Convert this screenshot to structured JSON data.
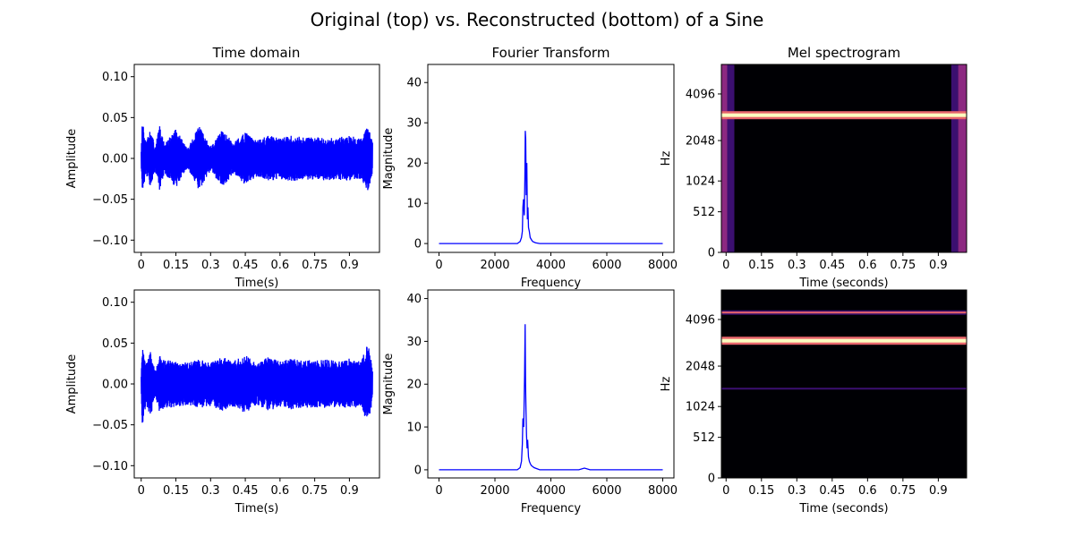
{
  "figure": {
    "title": "Original (top) vs. Reconstructed (bottom) of a Sine",
    "column_titles": [
      "Time domain",
      "Fourier Transform",
      "Mel spectrogram"
    ]
  },
  "colors": {
    "signal": "#0000ff",
    "spec_background": "#000004",
    "spec_band_core": "#fcfdbf",
    "spec_band_edge": "#e8656c",
    "spec_edge_purple": "#3b0f70",
    "spec_edge_magenta": "#8c2981"
  },
  "chart_data": [
    {
      "id": "time-original",
      "type": "line",
      "xlabel": "Time(s)",
      "ylabel": "Amplitude",
      "xlim": [
        -0.03,
        1.03
      ],
      "ylim": [
        -0.115,
        0.115
      ],
      "xticks": [
        0,
        0.15,
        0.3,
        0.45,
        0.6,
        0.75,
        0.9
      ],
      "xtick_labels": [
        "0",
        "0.15",
        "0.3",
        "0.45",
        "0.6",
        "0.75",
        "0.9"
      ],
      "yticks": [
        -0.1,
        -0.05,
        0,
        0.05,
        0.1
      ],
      "ytick_labels": [
        "−0.10",
        "−0.05",
        "0.00",
        "0.05",
        "0.10"
      ],
      "envelope": {
        "t": [
          0.0,
          0.005,
          0.02,
          0.04,
          0.06,
          0.08,
          0.1,
          0.15,
          0.2,
          0.25,
          0.3,
          0.35,
          0.4,
          0.45,
          0.5,
          0.55,
          0.6,
          0.65,
          0.7,
          0.75,
          0.8,
          0.85,
          0.9,
          0.95,
          0.98,
          1.0
        ],
        "amp": [
          0.012,
          0.047,
          0.02,
          0.035,
          0.015,
          0.04,
          0.018,
          0.036,
          0.012,
          0.04,
          0.015,
          0.035,
          0.02,
          0.032,
          0.022,
          0.028,
          0.025,
          0.028,
          0.026,
          0.026,
          0.027,
          0.026,
          0.028,
          0.025,
          0.04,
          0.02
        ]
      }
    },
    {
      "id": "fft-original",
      "type": "line",
      "xlabel": "Frequency",
      "ylabel": "Magnitude",
      "xlim": [
        -400,
        8400
      ],
      "ylim": [
        -2.2,
        44.5
      ],
      "xticks": [
        0,
        2000,
        4000,
        6000,
        8000
      ],
      "xtick_labels": [
        "0",
        "2000",
        "4000",
        "6000",
        "8000"
      ],
      "yticks": [
        0,
        10,
        20,
        30,
        40
      ],
      "ytick_labels": [
        "0",
        "10",
        "20",
        "30",
        "40"
      ],
      "x": [
        0,
        2800,
        2900,
        2950,
        2980,
        3000,
        3020,
        3050,
        3070,
        3085,
        3100,
        3120,
        3140,
        3160,
        3180,
        3200,
        3230,
        3260,
        3300,
        3350,
        3450,
        3600,
        4000,
        8000
      ],
      "y": [
        0,
        0,
        0.5,
        1.5,
        3,
        9,
        11,
        7,
        16,
        28,
        26,
        12,
        20,
        6,
        9,
        4,
        3,
        1.5,
        1,
        0.5,
        0.2,
        0,
        0,
        0
      ]
    },
    {
      "id": "mel-original",
      "type": "heatmap",
      "xlabel": "Time (seconds)",
      "ylabel": "Hz",
      "xticks": [
        0,
        0.15,
        0.3,
        0.45,
        0.6,
        0.75,
        0.9
      ],
      "xtick_labels": [
        "0",
        "0.15",
        "0.3",
        "0.45",
        "0.6",
        "0.75",
        "0.9"
      ],
      "ytick_labels": [
        "0",
        "512",
        "1024",
        "2048",
        "4096"
      ],
      "time_range": [
        -0.02,
        1.02
      ],
      "mel_range": [
        0,
        1.0
      ],
      "ytick_mel": [
        0,
        0.216,
        0.38,
        0.595,
        0.843
      ],
      "bands": [
        {
          "mel": 0.73,
          "strength": 1.0
        }
      ],
      "edge_frames": {
        "left": [
          -0.02,
          0.035
        ],
        "right": [
          0.955,
          1.02
        ]
      }
    },
    {
      "id": "time-reconstructed",
      "type": "line",
      "xlabel": "Time(s)",
      "ylabel": "Amplitude",
      "xlim": [
        -0.03,
        1.03
      ],
      "ylim": [
        -0.115,
        0.115
      ],
      "xticks": [
        0,
        0.15,
        0.3,
        0.45,
        0.6,
        0.75,
        0.9
      ],
      "xtick_labels": [
        "0",
        "0.15",
        "0.3",
        "0.45",
        "0.6",
        "0.75",
        "0.9"
      ],
      "yticks": [
        -0.1,
        -0.05,
        0,
        0.05,
        0.1
      ],
      "ytick_labels": [
        "−0.10",
        "−0.05",
        "0.00",
        "0.05",
        "0.10"
      ],
      "envelope": {
        "t": [
          0.0,
          0.005,
          0.02,
          0.04,
          0.06,
          0.08,
          0.1,
          0.15,
          0.2,
          0.25,
          0.3,
          0.35,
          0.4,
          0.45,
          0.5,
          0.55,
          0.6,
          0.65,
          0.7,
          0.75,
          0.8,
          0.85,
          0.9,
          0.95,
          0.98,
          1.0
        ],
        "amp": [
          0.012,
          0.055,
          0.025,
          0.04,
          0.018,
          0.035,
          0.03,
          0.028,
          0.026,
          0.03,
          0.027,
          0.033,
          0.028,
          0.036,
          0.025,
          0.033,
          0.028,
          0.031,
          0.029,
          0.03,
          0.03,
          0.028,
          0.031,
          0.027,
          0.05,
          0.02
        ]
      }
    },
    {
      "id": "fft-reconstructed",
      "type": "line",
      "xlabel": "Frequency",
      "ylabel": "Magnitude",
      "xlim": [
        -400,
        8400
      ],
      "ylim": [
        -1.9,
        42
      ],
      "xticks": [
        0,
        2000,
        4000,
        6000,
        8000
      ],
      "xtick_labels": [
        "0",
        "2000",
        "4000",
        "6000",
        "8000"
      ],
      "yticks": [
        0,
        10,
        20,
        30,
        40
      ],
      "ytick_labels": [
        "0",
        "10",
        "20",
        "30",
        "40"
      ],
      "x": [
        0,
        2800,
        2900,
        2950,
        2980,
        3000,
        3030,
        3060,
        3080,
        3095,
        3110,
        3130,
        3150,
        3170,
        3200,
        3230,
        3260,
        3300,
        3400,
        3600,
        5000,
        5200,
        5400,
        8000
      ],
      "y": [
        0,
        0,
        0.5,
        2,
        6,
        12,
        10,
        22,
        34,
        20,
        14,
        8,
        5,
        7,
        3,
        2,
        1.5,
        1,
        0.5,
        0,
        0,
        0.4,
        0,
        0
      ]
    },
    {
      "id": "mel-reconstructed",
      "type": "heatmap",
      "xlabel": "Time (seconds)",
      "ylabel": "Hz",
      "xticks": [
        0,
        0.15,
        0.3,
        0.45,
        0.6,
        0.75,
        0.9
      ],
      "xtick_labels": [
        "0",
        "0.15",
        "0.3",
        "0.45",
        "0.6",
        "0.75",
        "0.9"
      ],
      "ytick_labels": [
        "0",
        "512",
        "1024",
        "2048",
        "4096"
      ],
      "time_range": [
        -0.02,
        1.02
      ],
      "mel_range": [
        0,
        1.0
      ],
      "ytick_mel": [
        0,
        0.216,
        0.38,
        0.595,
        0.843
      ],
      "bands": [
        {
          "mel": 0.73,
          "strength": 1.0
        },
        {
          "mel": 0.88,
          "strength": 0.6
        },
        {
          "mel": 0.475,
          "strength": 0.25
        }
      ],
      "edge_frames": null
    }
  ]
}
